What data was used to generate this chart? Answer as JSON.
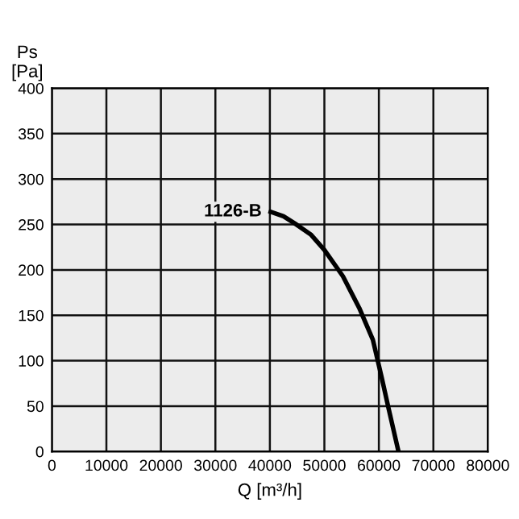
{
  "chart_data": {
    "type": "line",
    "xlabel": "Q [m³/h]",
    "ylabel": "Ps\n[Pa]",
    "series": [
      {
        "name": "1126-B",
        "color": "#000000",
        "x": [
          40150,
          42500,
          44600,
          47500,
          50000,
          53400,
          56400,
          58900,
          60500,
          61800,
          63600
        ],
        "values": [
          264,
          259,
          251,
          239,
          222,
          193,
          158,
          123,
          82,
          47,
          0
        ]
      }
    ],
    "xlim": [
      0,
      80000
    ],
    "ylim": [
      0,
      400
    ],
    "xticks": [
      0,
      10000,
      20000,
      30000,
      40000,
      50000,
      60000,
      70000,
      80000
    ],
    "yticks": [
      0,
      50,
      100,
      150,
      200,
      250,
      300,
      350,
      400
    ],
    "grid": true,
    "legend": false,
    "marker": "none",
    "line_style": "solid"
  }
}
